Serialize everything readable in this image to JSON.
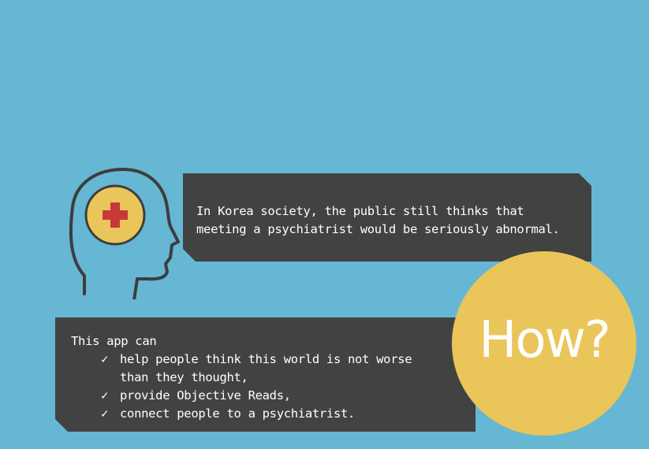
{
  "colors": {
    "background": "#65b7d3",
    "panel": "#424242",
    "panel_text": "#ffffff",
    "accent_yellow": "#eac55a",
    "cross_red": "#c8383a",
    "head_outline": "#3d3d3d"
  },
  "statement": {
    "line1": "In Korea society, the public still thinks that",
    "line2": "meeting a psychiatrist would be seriously abnormal."
  },
  "how_label": "How?",
  "app_box": {
    "intro": "This app can",
    "check_glyph": "✓",
    "items": [
      {
        "line1": "help people think this world is not worse",
        "line2": "than they thought,"
      },
      {
        "line1": "provide Objective Reads,"
      },
      {
        "line1": "connect people to a psychiatrist."
      }
    ]
  },
  "icons": {
    "head": "head-medical-cross-icon",
    "check": "check-mark-icon"
  }
}
